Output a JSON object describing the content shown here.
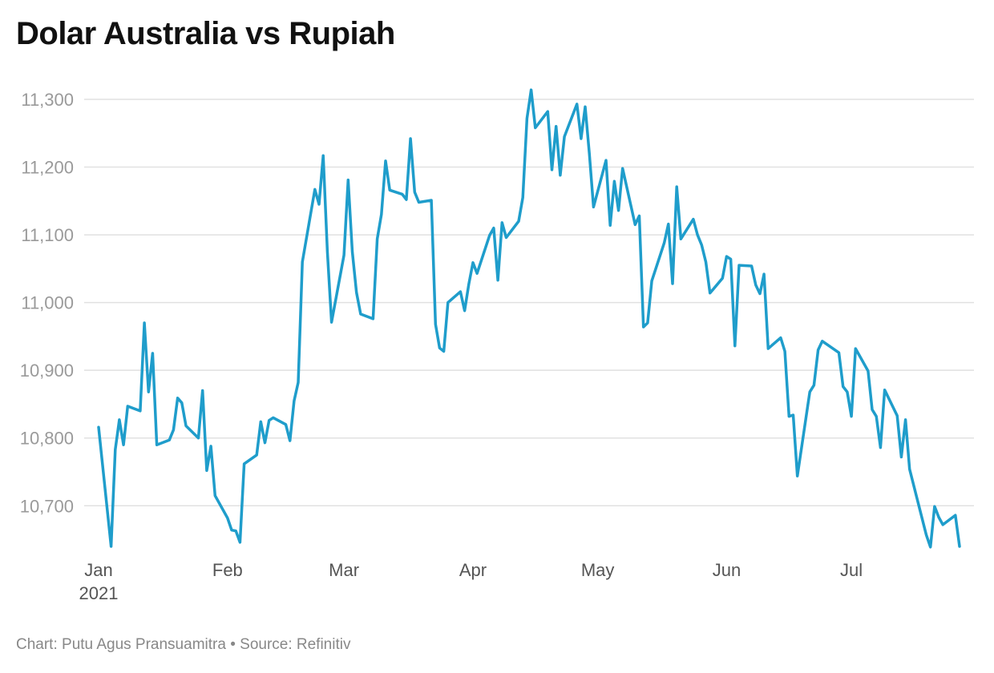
{
  "footer": {
    "credit": "Chart: Putu Agus Pransuamitra",
    "separator": " • ",
    "source": "Source: Refinitiv"
  },
  "colors": {
    "line": "#1f9dcb",
    "grid": "#e1e1e1",
    "ytick": "#9a9a9a",
    "xtick": "#555555"
  },
  "chart_data": {
    "type": "line",
    "title": "Dolar Australia vs Rupiah",
    "xlabel": "",
    "ylabel": "",
    "xlim": [
      "2021-01-01",
      "2021-07-27"
    ],
    "ylim": [
      10640,
      11300
    ],
    "grid": true,
    "yticks": [
      10700,
      10800,
      10900,
      11000,
      11100,
      11200,
      11300
    ],
    "ytick_labels": [
      "10,700",
      "10,800",
      "10,900",
      "11,000",
      "11,100",
      "11,200",
      "11,300"
    ],
    "xticks": [
      {
        "date": "2021-01-01",
        "label": "Jan",
        "sublabel": "2021"
      },
      {
        "date": "2021-02-01",
        "label": "Feb",
        "sublabel": ""
      },
      {
        "date": "2021-03-01",
        "label": "Mar",
        "sublabel": ""
      },
      {
        "date": "2021-04-01",
        "label": "Apr",
        "sublabel": ""
      },
      {
        "date": "2021-05-01",
        "label": "May",
        "sublabel": ""
      },
      {
        "date": "2021-06-01",
        "label": "Jun",
        "sublabel": ""
      },
      {
        "date": "2021-07-01",
        "label": "Jul",
        "sublabel": ""
      }
    ],
    "series": [
      {
        "points": [
          [
            "2021-01-01",
            10816
          ],
          [
            "2021-01-04",
            10640
          ],
          [
            "2021-01-05",
            10783
          ],
          [
            "2021-01-06",
            10827
          ],
          [
            "2021-01-07",
            10790
          ],
          [
            "2021-01-08",
            10847
          ],
          [
            "2021-01-11",
            10840
          ],
          [
            "2021-01-12",
            10970
          ],
          [
            "2021-01-13",
            10868
          ],
          [
            "2021-01-14",
            10925
          ],
          [
            "2021-01-15",
            10790
          ],
          [
            "2021-01-18",
            10797
          ],
          [
            "2021-01-19",
            10812
          ],
          [
            "2021-01-20",
            10859
          ],
          [
            "2021-01-21",
            10852
          ],
          [
            "2021-01-22",
            10818
          ],
          [
            "2021-01-25",
            10800
          ],
          [
            "2021-01-26",
            10870
          ],
          [
            "2021-01-27",
            10752
          ],
          [
            "2021-01-28",
            10788
          ],
          [
            "2021-01-29",
            10715
          ],
          [
            "2021-02-01",
            10682
          ],
          [
            "2021-02-02",
            10664
          ],
          [
            "2021-02-03",
            10663
          ],
          [
            "2021-02-04",
            10646
          ],
          [
            "2021-02-05",
            10762
          ],
          [
            "2021-02-08",
            10775
          ],
          [
            "2021-02-09",
            10824
          ],
          [
            "2021-02-10",
            10793
          ],
          [
            "2021-02-11",
            10826
          ],
          [
            "2021-02-12",
            10830
          ],
          [
            "2021-02-15",
            10820
          ],
          [
            "2021-02-16",
            10796
          ],
          [
            "2021-02-17",
            10855
          ],
          [
            "2021-02-18",
            10882
          ],
          [
            "2021-02-19",
            11060
          ],
          [
            "2021-02-22",
            11167
          ],
          [
            "2021-02-23",
            11145
          ],
          [
            "2021-02-24",
            11217
          ],
          [
            "2021-02-25",
            11075
          ],
          [
            "2021-02-26",
            10971
          ],
          [
            "2021-03-01",
            11070
          ],
          [
            "2021-03-02",
            11181
          ],
          [
            "2021-03-03",
            11075
          ],
          [
            "2021-03-04",
            11015
          ],
          [
            "2021-03-05",
            10983
          ],
          [
            "2021-03-08",
            10976
          ],
          [
            "2021-03-09",
            11094
          ],
          [
            "2021-03-10",
            11130
          ],
          [
            "2021-03-11",
            11209
          ],
          [
            "2021-03-12",
            11166
          ],
          [
            "2021-03-15",
            11160
          ],
          [
            "2021-03-16",
            11152
          ],
          [
            "2021-03-17",
            11242
          ],
          [
            "2021-03-18",
            11163
          ],
          [
            "2021-03-19",
            11148
          ],
          [
            "2021-03-22",
            11151
          ],
          [
            "2021-03-23",
            10968
          ],
          [
            "2021-03-24",
            10933
          ],
          [
            "2021-03-25",
            10928
          ],
          [
            "2021-03-26",
            11000
          ],
          [
            "2021-03-29",
            11016
          ],
          [
            "2021-03-30",
            10988
          ],
          [
            "2021-03-31",
            11027
          ],
          [
            "2021-04-01",
            11059
          ],
          [
            "2021-04-02",
            11043
          ],
          [
            "2021-04-05",
            11099
          ],
          [
            "2021-04-06",
            11110
          ],
          [
            "2021-04-07",
            11033
          ],
          [
            "2021-04-08",
            11118
          ],
          [
            "2021-04-09",
            11096
          ],
          [
            "2021-04-12",
            11120
          ],
          [
            "2021-04-13",
            11155
          ],
          [
            "2021-04-14",
            11272
          ],
          [
            "2021-04-15",
            11314
          ],
          [
            "2021-04-16",
            11258
          ],
          [
            "2021-04-19",
            11282
          ],
          [
            "2021-04-20",
            11196
          ],
          [
            "2021-04-21",
            11260
          ],
          [
            "2021-04-22",
            11188
          ],
          [
            "2021-04-23",
            11245
          ],
          [
            "2021-04-26",
            11293
          ],
          [
            "2021-04-27",
            11242
          ],
          [
            "2021-04-28",
            11289
          ],
          [
            "2021-04-29",
            11220
          ],
          [
            "2021-04-30",
            11141
          ],
          [
            "2021-05-03",
            11210
          ],
          [
            "2021-05-04",
            11114
          ],
          [
            "2021-05-05",
            11179
          ],
          [
            "2021-05-06",
            11136
          ],
          [
            "2021-05-07",
            11198
          ],
          [
            "2021-05-10",
            11115
          ],
          [
            "2021-05-11",
            11128
          ],
          [
            "2021-05-12",
            10964
          ],
          [
            "2021-05-13",
            10970
          ],
          [
            "2021-05-14",
            11032
          ],
          [
            "2021-05-17",
            11088
          ],
          [
            "2021-05-18",
            11116
          ],
          [
            "2021-05-19",
            11028
          ],
          [
            "2021-05-20",
            11171
          ],
          [
            "2021-05-21",
            11094
          ],
          [
            "2021-05-24",
            11123
          ],
          [
            "2021-05-25",
            11100
          ],
          [
            "2021-05-26",
            11085
          ],
          [
            "2021-05-27",
            11060
          ],
          [
            "2021-05-28",
            11014
          ],
          [
            "2021-05-31",
            11036
          ],
          [
            "2021-06-01",
            11068
          ],
          [
            "2021-06-02",
            11064
          ],
          [
            "2021-06-03",
            10936
          ],
          [
            "2021-06-04",
            11055
          ],
          [
            "2021-06-07",
            11054
          ],
          [
            "2021-06-08",
            11026
          ],
          [
            "2021-06-09",
            11013
          ],
          [
            "2021-06-10",
            11042
          ],
          [
            "2021-06-11",
            10932
          ],
          [
            "2021-06-14",
            10948
          ],
          [
            "2021-06-15",
            10928
          ],
          [
            "2021-06-16",
            10832
          ],
          [
            "2021-06-17",
            10834
          ],
          [
            "2021-06-18",
            10744
          ],
          [
            "2021-06-21",
            10868
          ],
          [
            "2021-06-22",
            10878
          ],
          [
            "2021-06-23",
            10930
          ],
          [
            "2021-06-24",
            10943
          ],
          [
            "2021-06-28",
            10926
          ],
          [
            "2021-06-29",
            10876
          ],
          [
            "2021-06-30",
            10868
          ],
          [
            "2021-07-01",
            10832
          ],
          [
            "2021-07-02",
            10932
          ],
          [
            "2021-07-05",
            10899
          ],
          [
            "2021-07-06",
            10842
          ],
          [
            "2021-07-07",
            10832
          ],
          [
            "2021-07-08",
            10786
          ],
          [
            "2021-07-09",
            10871
          ],
          [
            "2021-07-12",
            10833
          ],
          [
            "2021-07-13",
            10772
          ],
          [
            "2021-07-14",
            10827
          ],
          [
            "2021-07-15",
            10754
          ],
          [
            "2021-07-19",
            10657
          ],
          [
            "2021-07-20",
            10639
          ],
          [
            "2021-07-21",
            10699
          ],
          [
            "2021-07-22",
            10683
          ],
          [
            "2021-07-23",
            10672
          ],
          [
            "2021-07-26",
            10686
          ],
          [
            "2021-07-27",
            10640
          ]
        ]
      }
    ]
  }
}
